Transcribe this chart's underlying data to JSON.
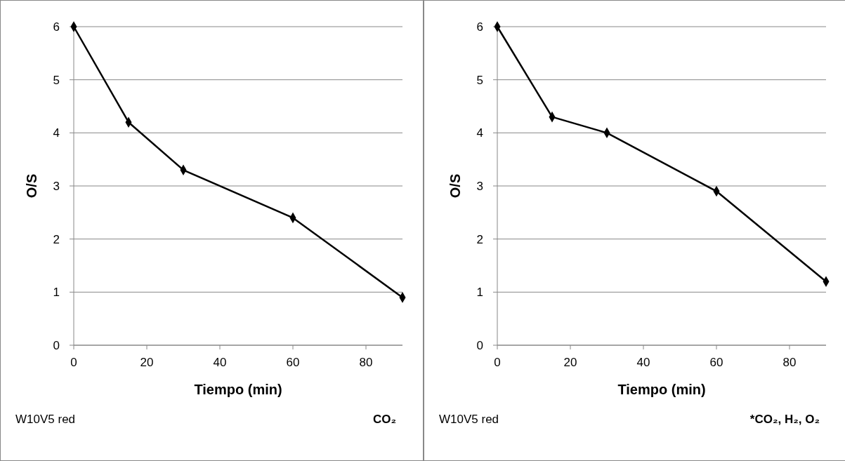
{
  "chart_data": [
    {
      "type": "line",
      "xlabel": "Tiempo (min)",
      "ylabel": "O/S",
      "x": [
        0,
        15,
        30,
        60,
        90
      ],
      "series": [
        {
          "color": "#000000",
          "values": [
            6,
            4.2,
            3.3,
            2.4,
            0.9
          ]
        }
      ],
      "xlim": [
        0,
        90
      ],
      "xticks": [
        0,
        20,
        40,
        60,
        80
      ],
      "ylim": [
        0,
        6
      ],
      "yticks": [
        0,
        1,
        2,
        3,
        4,
        5,
        6
      ],
      "grid": "y",
      "marker": "diamond",
      "annotations": [
        "W10V5 red",
        "CO₂"
      ]
    },
    {
      "type": "line",
      "xlabel": "Tiempo (min)",
      "ylabel": "O/S",
      "x": [
        0,
        15,
        30,
        60,
        90
      ],
      "series": [
        {
          "color": "#000000",
          "values": [
            6,
            4.3,
            4.0,
            2.9,
            1.2
          ]
        }
      ],
      "xlim": [
        0,
        90
      ],
      "xticks": [
        0,
        20,
        40,
        60,
        80
      ],
      "ylim": [
        0,
        6
      ],
      "yticks": [
        0,
        1,
        2,
        3,
        4,
        5,
        6
      ],
      "grid": "y",
      "marker": "diamond",
      "annotations": [
        "W10V5 red",
        "*CO₂, H₂, O₂"
      ]
    }
  ]
}
